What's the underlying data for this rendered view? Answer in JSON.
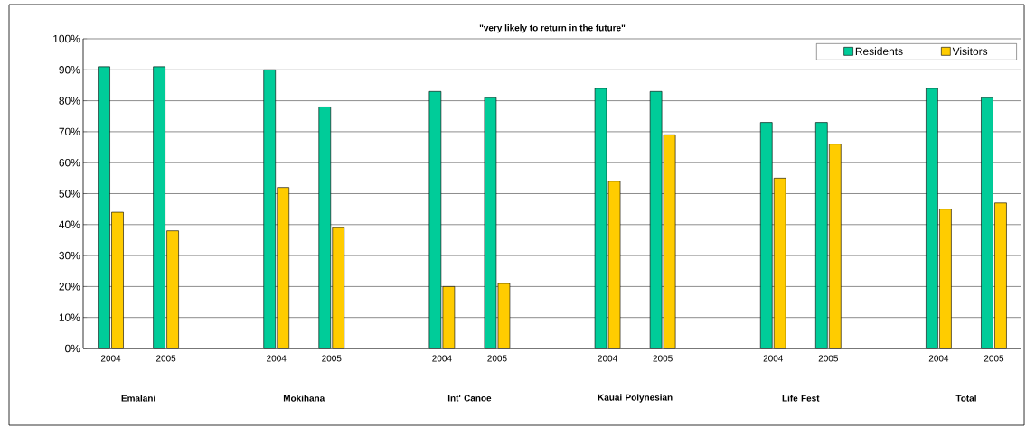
{
  "chart_data": {
    "type": "bar",
    "title": "\"very likely to return in the future\"",
    "categories": [
      "2004",
      "2005",
      null,
      "2004",
      "2005",
      null,
      "2004",
      "2005",
      null,
      "2004",
      "2005",
      null,
      "2004",
      "2005",
      null,
      "2004",
      "2005"
    ],
    "series": [
      {
        "name": "Residents",
        "color": "#00cc99",
        "values": [
          91,
          91,
          null,
          90,
          78,
          null,
          83,
          81,
          null,
          84,
          83,
          null,
          73,
          73,
          null,
          84,
          81
        ]
      },
      {
        "name": "Visitors",
        "color": "#ffcc00",
        "values": [
          44,
          38,
          null,
          52,
          39,
          null,
          20,
          21,
          null,
          54,
          69,
          null,
          55,
          66,
          null,
          45,
          47
        ]
      }
    ],
    "ylim": [
      0,
      100
    ],
    "yticks": [
      {
        "value": 0,
        "label": "0%"
      },
      {
        "value": 10,
        "label": "10%"
      },
      {
        "value": 20,
        "label": "20%"
      },
      {
        "value": 30,
        "label": "30%"
      },
      {
        "value": 40,
        "label": "40%"
      },
      {
        "value": 50,
        "label": "50%"
      },
      {
        "value": 60,
        "label": "60%"
      },
      {
        "value": 70,
        "label": "70%"
      },
      {
        "value": 80,
        "label": "80%"
      },
      {
        "value": 90,
        "label": "90%"
      },
      {
        "value": 100,
        "label": "100%"
      }
    ],
    "grid": "y",
    "legend": "top right",
    "annotations": [
      "Emalani",
      "Mokihana",
      "Int' Canoe",
      "Kauai Polynesian",
      "Life Fest",
      "Total"
    ]
  }
}
